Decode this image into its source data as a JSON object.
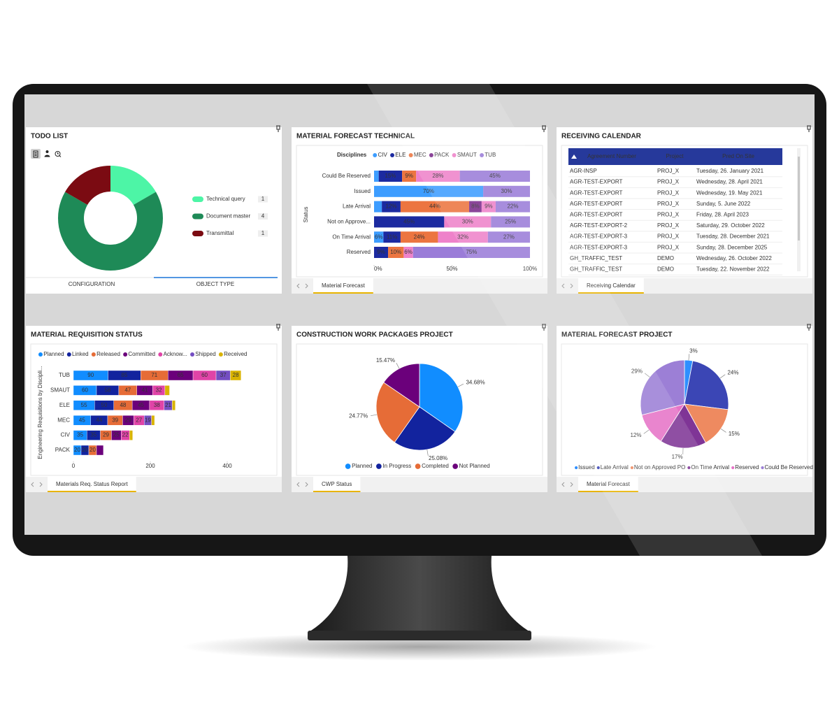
{
  "chart_data": [
    {
      "type": "donut",
      "title": "TODO LIST",
      "categories": [
        "Technical query",
        "Document master",
        "Transmittal"
      ],
      "values": [
        1,
        4,
        1
      ],
      "colors": [
        "#4df5a6",
        "#1e8a57",
        "#7b0b12"
      ],
      "tabs": [
        "CONFIGURATION",
        "OBJECT TYPE"
      ]
    },
    {
      "type": "stacked_bar_100",
      "title": "MATERIAL FORECAST TECHNICAL",
      "legend_title": "Disciplines",
      "categories": [
        "Could Be Reserved",
        "Issued",
        "Late Arrival",
        "Not on Approve...",
        "On Time Arrival",
        "Reserved"
      ],
      "ylabel": "Status",
      "xlim": [
        0,
        100
      ],
      "xticks": [
        {
          "value": 0,
          "label": "0%"
        },
        {
          "value": 50,
          "label": "50%"
        },
        {
          "value": 100,
          "label": "100%"
        }
      ],
      "series": [
        {
          "name": "CIV",
          "color": "#3d9dff",
          "values": [
            3,
            70,
            5,
            null,
            6,
            null
          ],
          "value_labels": [
            null,
            "70%",
            null,
            null,
            "6%",
            null
          ]
        },
        {
          "name": "ELE",
          "color": "#1c2aa0",
          "values": [
            15,
            null,
            12,
            45,
            11,
            9
          ],
          "value_labels": [
            "15%",
            null,
            "12%",
            "45%",
            "11%",
            "9%"
          ]
        },
        {
          "name": "MEC",
          "color": "#ec7540",
          "values": [
            9,
            null,
            44,
            null,
            24,
            10
          ],
          "value_labels": [
            "9%",
            null,
            "44%",
            null,
            "24%",
            "10%"
          ]
        },
        {
          "name": "PACK",
          "color": "#7a2a8a",
          "values": [
            null,
            null,
            8,
            null,
            null,
            null
          ],
          "value_labels": [
            null,
            null,
            "8%",
            null,
            null,
            null
          ]
        },
        {
          "name": "SMAUT",
          "color": "#ee82ca",
          "values": [
            28,
            null,
            9,
            30,
            32,
            6
          ],
          "value_labels": [
            "28%",
            null,
            "9%",
            "30%",
            "32%",
            "6%"
          ]
        },
        {
          "name": "TUB",
          "color": "#9a7cd8",
          "values": [
            45,
            30,
            22,
            25,
            27,
            75
          ],
          "value_labels": [
            "45%",
            "30%",
            "22%",
            "25%",
            "27%",
            "75%"
          ]
        }
      ],
      "tab": "Material Forecast"
    },
    {
      "type": "stacked_bar",
      "title": "MATERIAL REQUISITION STATUS",
      "categories": [
        "TUB",
        "SMAUT",
        "ELE",
        "MEC",
        "CIV",
        "PACK"
      ],
      "ylabel": "Engineering Requisitions by Discipli...",
      "xlim": [
        0,
        520
      ],
      "xticks": [
        0,
        200,
        400
      ],
      "series": [
        {
          "name": "Planned",
          "color": "#118dff",
          "values": [
            90,
            60,
            55,
            45,
            35,
            20
          ]
        },
        {
          "name": "Linked",
          "color": "#12239e",
          "values": [
            85,
            58,
            50,
            44,
            35,
            20
          ]
        },
        {
          "name": "Released",
          "color": "#e66c37",
          "values": [
            71,
            47,
            48,
            39,
            29,
            20
          ]
        },
        {
          "name": "Committed",
          "color": "#6b007b",
          "values": [
            65,
            41,
            45,
            29,
            25,
            18
          ]
        },
        {
          "name": "Acknow...",
          "color": "#e044a7",
          "values": [
            60,
            32,
            38,
            27,
            22,
            null
          ]
        },
        {
          "name": "Shipped",
          "color": "#744ec2",
          "values": [
            37,
            null,
            21,
            19,
            null,
            null
          ]
        },
        {
          "name": "Received",
          "color": "#d9b300",
          "values": [
            28,
            12,
            8,
            8,
            8,
            null
          ]
        }
      ],
      "tab": "Materials Req. Status Report"
    },
    {
      "type": "pie",
      "title": "CONSTRUCTION WORK PACKAGES PROJECT",
      "categories": [
        "Planned",
        "In Progress",
        "Completed",
        "Not Planned"
      ],
      "values": [
        34.68,
        25.08,
        24.77,
        15.47
      ],
      "value_labels": [
        "34.68%",
        "25.08%",
        "24.77%",
        "15.47%"
      ],
      "colors": [
        "#118dff",
        "#12239e",
        "#e66c37",
        "#6b007b"
      ],
      "tab": "CWP Status"
    },
    {
      "type": "pie",
      "title": "MATERIAL FORECAST PROJECT",
      "categories": [
        "Issued",
        "Late Arrival",
        "Not on Approved PO",
        "On Time Arrival",
        "Reserved",
        "Could Be Reserved"
      ],
      "values": [
        3,
        24,
        15,
        17,
        12,
        29
      ],
      "value_labels": [
        "3%",
        "24%",
        "15%",
        "17%",
        "12%",
        "29%"
      ],
      "colors": [
        "#2f8fff",
        "#3b46b5",
        "#ee8a60",
        "#7f3596",
        "#e673c7",
        "#9c7fd6"
      ],
      "tab": "Material Forecast"
    }
  ],
  "receiving_calendar": {
    "title": "RECEIVING CALENDAR",
    "columns": [
      "Agreement Number",
      "Project",
      "Pred On Site"
    ],
    "rows": [
      [
        "AGR-INSP",
        "PROJ_X",
        "Tuesday, 26. January 2021"
      ],
      [
        "AGR-TEST-EXPORT",
        "PROJ_X",
        "Wednesday, 28. April 2021"
      ],
      [
        "AGR-TEST-EXPORT",
        "PROJ_X",
        "Wednesday, 19. May 2021"
      ],
      [
        "AGR-TEST-EXPORT",
        "PROJ_X",
        "Sunday, 5. June 2022"
      ],
      [
        "AGR-TEST-EXPORT",
        "PROJ_X",
        "Friday, 28. April 2023"
      ],
      [
        "AGR-TEST-EXPORT-2",
        "PROJ_X",
        "Saturday, 29. October 2022"
      ],
      [
        "AGR-TEST-EXPORT-3",
        "PROJ_X",
        "Tuesday, 28. December 2021"
      ],
      [
        "AGR-TEST-EXPORT-3",
        "PROJ_X",
        "Sunday, 28. December 2025"
      ],
      [
        "GH_TRAFFIC_TEST",
        "DEMO",
        "Wednesday, 26. October 2022"
      ],
      [
        "GH_TRAFFIC_TEST",
        "DEMO",
        "Tuesday, 22. November 2022"
      ]
    ],
    "tab": "Receiving Calendar"
  }
}
